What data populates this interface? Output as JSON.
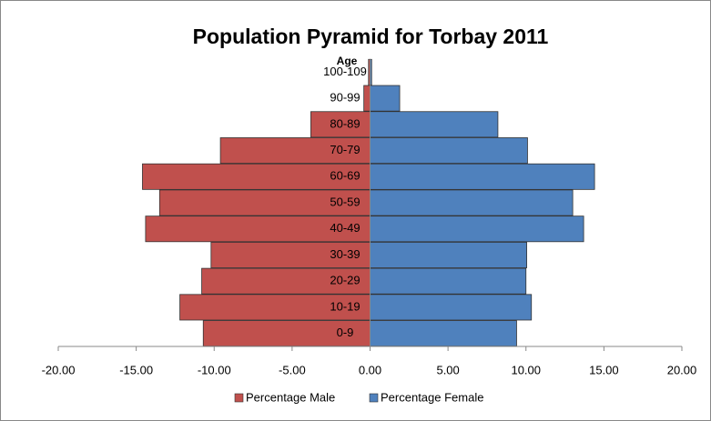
{
  "chart_data": {
    "type": "bar",
    "orientation": "horizontal",
    "title": "Population Pyramid for Torbay 2011",
    "category_axis_label": "Age",
    "categories": [
      "0-9",
      "10-19",
      "20-29",
      "30-39",
      "40-49",
      "50-59",
      "60-69",
      "70-79",
      "80-89",
      "90-99",
      "100-109"
    ],
    "series": [
      {
        "name": "Percentage Male",
        "color": "#c0504d",
        "values": [
          -10.7,
          -12.2,
          -10.8,
          -10.2,
          -14.4,
          -13.5,
          -14.6,
          -9.6,
          -3.8,
          -0.4,
          -0.1
        ]
      },
      {
        "name": "Percentage Female",
        "color": "#4f81bd",
        "values": [
          9.4,
          10.35,
          10.0,
          10.05,
          13.7,
          13.0,
          14.4,
          10.1,
          8.2,
          1.9,
          0.1
        ]
      }
    ],
    "xlim": [
      -20,
      20
    ],
    "xticks": [
      {
        "value": -20,
        "label": "-20.00"
      },
      {
        "value": -15,
        "label": "-15.00"
      },
      {
        "value": -10,
        "label": "-10.00"
      },
      {
        "value": -5,
        "label": "-5.00"
      },
      {
        "value": 0,
        "label": "0.00"
      },
      {
        "value": 5,
        "label": "5.00"
      },
      {
        "value": 10,
        "label": "10.00"
      },
      {
        "value": 15,
        "label": "15.00"
      },
      {
        "value": 20,
        "label": "20.00"
      }
    ],
    "grid": false,
    "legend": "bottom"
  }
}
